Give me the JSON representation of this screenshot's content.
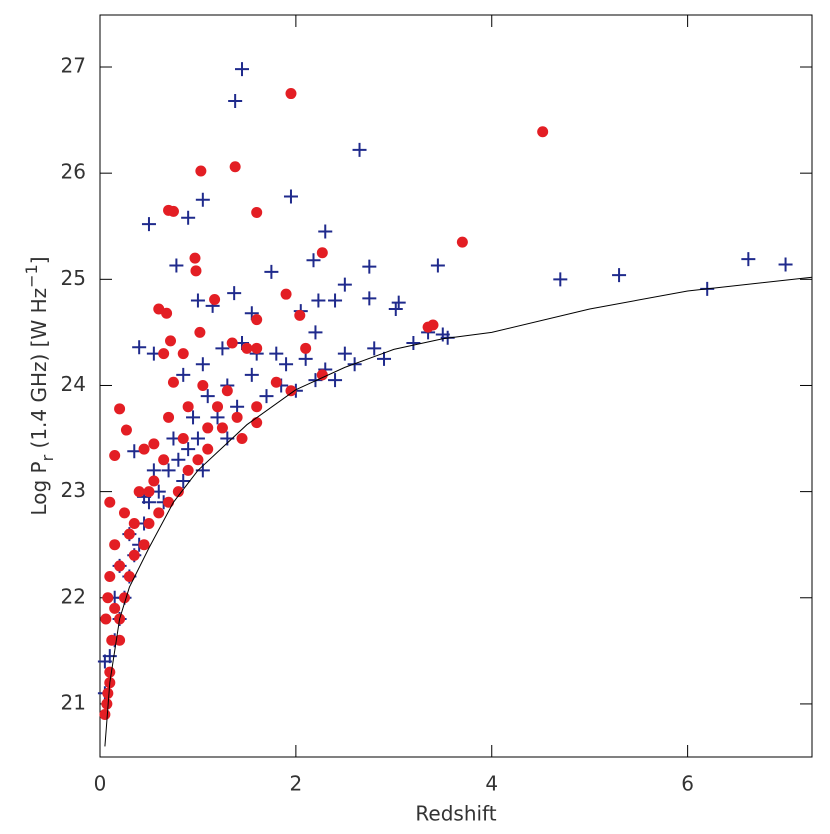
{
  "chart_data": {
    "type": "scatter",
    "xlabel": "Redshift",
    "ylabel": [
      {
        "text": "Log P",
        "shift": "base"
      },
      {
        "text": "r",
        "shift": "sub"
      },
      {
        "text": " (1.4 GHz) [W Hz",
        "shift": "base"
      },
      {
        "text": "−1",
        "shift": "super"
      },
      {
        "text": "]",
        "shift": "base"
      }
    ],
    "xlim": [
      0,
      7.27
    ],
    "ylim": [
      20.5,
      27.49
    ],
    "xticks": [
      0,
      2,
      4,
      6
    ],
    "yticks": [
      21,
      22,
      23,
      24,
      25,
      26,
      27
    ],
    "series": [
      {
        "color": "#1f2a8c",
        "marker": "plus",
        "x": [
          1.45,
          1.38,
          2.65,
          1.95,
          1.05,
          0.5,
          2.3,
          0.9,
          0.78,
          2.18,
          1.75,
          2.75,
          2.5,
          3.45,
          4.7,
          5.3,
          6.62,
          7.0,
          6.2,
          1.37,
          1.0,
          1.15,
          1.55,
          0.4,
          0.55,
          2.05,
          2.23,
          2.4,
          2.75,
          3.05,
          3.02,
          3.55,
          3.5,
          2.2,
          1.8,
          2.1,
          2.5,
          2.8,
          3.2,
          3.35,
          1.25,
          1.45,
          1.6,
          1.9,
          2.3,
          2.6,
          1.85,
          2.0,
          2.2,
          1.7,
          1.4,
          1.2,
          1.0,
          0.9,
          0.8,
          0.7,
          0.6,
          0.5,
          0.45,
          0.4,
          0.35,
          0.3,
          0.25,
          0.2,
          0.15,
          0.1,
          0.05,
          0.05,
          0.35,
          0.55,
          0.75,
          0.95,
          1.1,
          1.3,
          1.55,
          0.65,
          0.85,
          1.05,
          1.3,
          0.45,
          0.3,
          0.2,
          0.15,
          2.4,
          2.9,
          1.05,
          0.85
        ],
        "values": [
          26.98,
          26.68,
          26.22,
          25.78,
          25.75,
          25.52,
          25.45,
          25.58,
          25.13,
          25.18,
          25.07,
          25.12,
          24.95,
          25.13,
          25.0,
          25.04,
          25.19,
          25.14,
          24.91,
          24.87,
          24.8,
          24.75,
          24.68,
          24.36,
          24.3,
          24.7,
          24.8,
          24.8,
          24.82,
          24.78,
          24.72,
          24.45,
          24.48,
          24.5,
          24.3,
          24.25,
          24.3,
          24.35,
          24.4,
          24.5,
          24.35,
          24.4,
          24.3,
          24.2,
          24.15,
          24.2,
          24.0,
          23.95,
          24.05,
          23.9,
          23.8,
          23.7,
          23.5,
          23.4,
          23.3,
          23.2,
          23.0,
          22.9,
          22.7,
          22.5,
          22.4,
          22.2,
          22.0,
          21.8,
          21.6,
          21.45,
          21.4,
          21.1,
          23.38,
          23.2,
          23.5,
          23.7,
          23.9,
          24.0,
          24.1,
          22.9,
          23.1,
          23.2,
          23.5,
          22.95,
          22.6,
          22.3,
          22.0,
          24.05,
          24.25,
          24.2,
          24.1
        ]
      },
      {
        "color": "#e31e24",
        "marker": "circle",
        "x": [
          1.95,
          4.52,
          1.03,
          1.38,
          1.6,
          0.7,
          0.75,
          3.7,
          2.27,
          0.97,
          0.98,
          1.9,
          1.17,
          2.04,
          0.6,
          0.68,
          1.6,
          0.72,
          1.02,
          1.35,
          1.6,
          3.4,
          3.35,
          0.85,
          0.65,
          2.1,
          2.27,
          1.5,
          0.2,
          0.27,
          0.15,
          0.45,
          0.55,
          0.7,
          0.75,
          0.9,
          1.05,
          1.1,
          1.2,
          1.3,
          1.4,
          1.45,
          1.6,
          1.6,
          1.8,
          1.95,
          1.0,
          0.9,
          0.8,
          0.7,
          0.6,
          0.5,
          0.45,
          0.35,
          0.3,
          0.25,
          0.2,
          0.15,
          0.1,
          0.08,
          0.06,
          0.12,
          0.2,
          0.1,
          0.1,
          0.08,
          0.07,
          0.05,
          0.1,
          0.15,
          0.25,
          0.3,
          0.4,
          0.55,
          0.65,
          0.85,
          1.1,
          1.25,
          0.35,
          0.5,
          0.2
        ],
        "values": [
          26.75,
          26.39,
          26.02,
          26.06,
          25.63,
          25.65,
          25.64,
          25.35,
          25.25,
          25.2,
          25.08,
          24.86,
          24.81,
          24.66,
          24.72,
          24.68,
          24.62,
          24.42,
          24.5,
          24.4,
          24.35,
          24.57,
          24.55,
          24.3,
          24.3,
          24.35,
          24.1,
          24.35,
          23.78,
          23.58,
          23.34,
          23.4,
          23.45,
          23.7,
          24.03,
          23.8,
          24.0,
          23.6,
          23.8,
          23.95,
          23.7,
          23.5,
          23.8,
          23.65,
          24.03,
          23.95,
          23.3,
          23.2,
          23.0,
          22.9,
          22.8,
          22.7,
          22.5,
          22.4,
          22.2,
          22.0,
          21.8,
          21.9,
          22.2,
          22.0,
          21.8,
          21.6,
          21.6,
          21.3,
          21.2,
          21.1,
          21.0,
          20.9,
          22.9,
          22.5,
          22.8,
          22.6,
          23.0,
          23.1,
          23.3,
          23.5,
          23.4,
          23.6,
          22.7,
          23.0,
          22.3
        ]
      },
      {
        "color": "#000000",
        "marker": "line",
        "x": [
          0.05,
          0.1,
          0.2,
          0.3,
          0.5,
          0.75,
          1,
          1.5,
          2,
          2.5,
          3,
          3.5,
          4,
          5,
          6,
          7.27
        ],
        "values": [
          20.6,
          21.2,
          21.8,
          22.1,
          22.47,
          22.9,
          23.2,
          23.63,
          23.96,
          24.17,
          24.34,
          24.44,
          24.5,
          24.72,
          24.89,
          25.02
        ]
      }
    ]
  }
}
